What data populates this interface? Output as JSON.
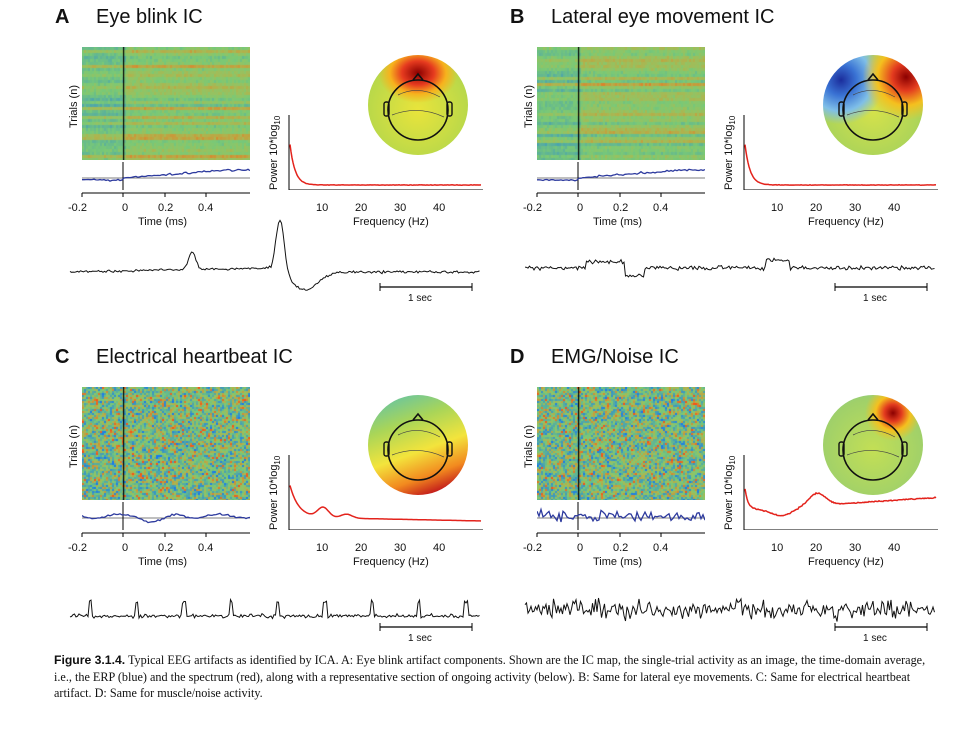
{
  "figure": {
    "panels": [
      {
        "letter": "A",
        "title": "Eye blink IC",
        "map": "frontal-blink",
        "raw": "blink",
        "erp": "step",
        "spec": "decay"
      },
      {
        "letter": "B",
        "title": "Lateral eye movement IC",
        "map": "lateral",
        "raw": "lateral",
        "erp": "step",
        "spec": "decay"
      },
      {
        "letter": "C",
        "title": "Electrical heartbeat IC",
        "map": "gradient",
        "raw": "heartbeat",
        "erp": "wobble",
        "spec": "peaks"
      },
      {
        "letter": "D",
        "title": "EMG/Noise IC",
        "map": "focal",
        "raw": "emg",
        "erp": "noise",
        "spec": "emg"
      }
    ],
    "trials_label": "Trials (n)",
    "time_ticks": [
      "-0.2",
      "0",
      "0.2",
      "0.4"
    ],
    "time_label": "Time (ms)",
    "freq_ticks": [
      "10",
      "20",
      "30",
      "40"
    ],
    "freq_label": "Frequency (Hz)",
    "power_label": "Power 10*log",
    "power_sub": "10",
    "scale_label": "1 sec"
  },
  "caption": {
    "figure_label": "Figure 3.1.4.",
    "text": " Typical EEG artifacts as identified by ICA. A: Eye blink artifact components. Shown are the IC map, the single-trial activity as an image, the time-domain average, i.e., the ERP (blue) and the spectrum (red), along with a representative section of ongoing activity (below). B: Same for lateral eye movements. C: Same for electrical heartbeat artifact. D: Same for muscle/noise activity."
  }
}
